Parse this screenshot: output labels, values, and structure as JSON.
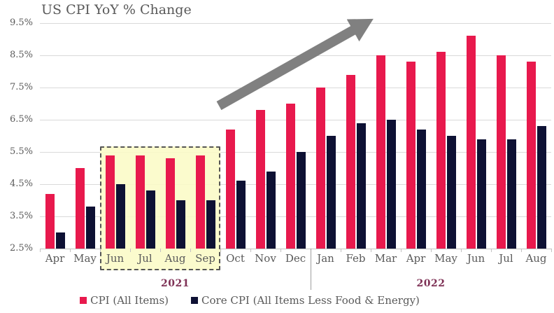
{
  "title": "US CPI YoY % Change",
  "chart_data": {
    "type": "bar",
    "categories": [
      "Apr",
      "May",
      "Jun",
      "Jul",
      "Aug",
      "Sep",
      "Oct",
      "Nov",
      "Dec",
      "Jan",
      "Feb",
      "Mar",
      "Apr",
      "May",
      "Jun",
      "Jul",
      "Aug"
    ],
    "year_groups": [
      {
        "label": "2021",
        "start_index": 0,
        "end_index": 8
      },
      {
        "label": "2022",
        "start_index": 9,
        "end_index": 16
      }
    ],
    "series": [
      {
        "name": "CPI (All Items)",
        "color": "#E8194D",
        "values": [
          4.2,
          5.0,
          5.4,
          5.4,
          5.3,
          5.4,
          6.2,
          6.8,
          7.0,
          7.5,
          7.9,
          8.5,
          8.3,
          8.6,
          9.1,
          8.5,
          8.3
        ]
      },
      {
        "name": "Core CPI (All Items Less Food & Energy)",
        "color": "#0E1134",
        "values": [
          3.0,
          3.8,
          4.5,
          4.3,
          4.0,
          4.0,
          4.6,
          4.9,
          5.5,
          6.0,
          6.4,
          6.5,
          6.2,
          6.0,
          5.9,
          5.9,
          6.3
        ]
      }
    ],
    "ylim": [
      2.5,
      9.5
    ],
    "y_ticks": [
      "9.5%",
      "8.5%",
      "7.5%",
      "6.5%",
      "5.5%",
      "4.5%",
      "3.5%",
      "2.5%"
    ],
    "grid": true,
    "legend_position": "bottom",
    "highlight": {
      "year": "2021",
      "months": [
        "Jun",
        "Jul",
        "Aug",
        "Sep"
      ],
      "start_index": 2,
      "end_index": 5
    },
    "annotation": {
      "type": "upward-trend-arrow"
    }
  },
  "colors": {
    "cpi_bar": "#E8194D",
    "core_cpi_bar": "#0E1134",
    "highlight_fill": "#FAFAC6",
    "highlight_border": "#555555",
    "gridline": "#D9D9D9",
    "axis_line": "#C2C2C2",
    "axis_text": "#595959",
    "title_text": "#595959",
    "year_label": "#7E3155",
    "divider": "#9E9E9E",
    "arrow": "#808080"
  }
}
